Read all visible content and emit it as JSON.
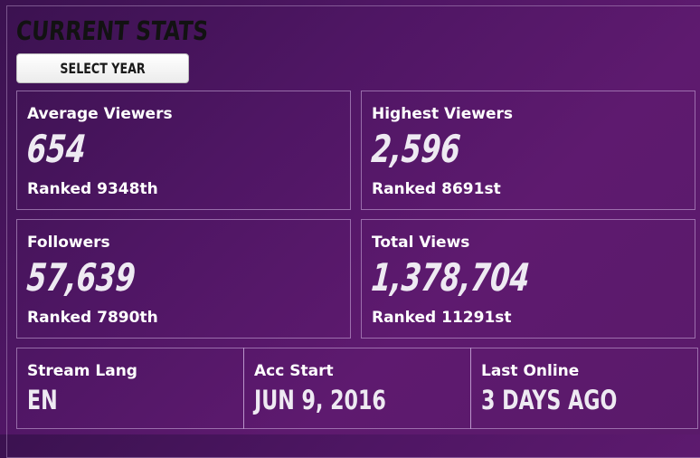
{
  "header": {
    "title": "CURRENT STATS",
    "select_year_label": "SELECT YEAR"
  },
  "stats": [
    {
      "label": "Average Viewers",
      "value": "654",
      "rank": "Ranked 9348th"
    },
    {
      "label": "Highest Viewers",
      "value": "2,596",
      "rank": "Ranked 8691st"
    },
    {
      "label": "Followers",
      "value": "57,639",
      "rank": "Ranked 7890th"
    },
    {
      "label": "Total Views",
      "value": "1,378,704",
      "rank": "Ranked 11291st"
    }
  ],
  "info": [
    {
      "label": "Stream Lang",
      "value": "EN"
    },
    {
      "label": "Acc Start",
      "value": "JUN 9, 2016"
    },
    {
      "label": "Last Online",
      "value": "3 DAYS AGO"
    }
  ],
  "colors": {
    "background_dark": "#3b1250",
    "background_light": "#5e1a6f",
    "border": "#c9a6dc",
    "title": "#121212",
    "button_bg": "#ffffff"
  }
}
